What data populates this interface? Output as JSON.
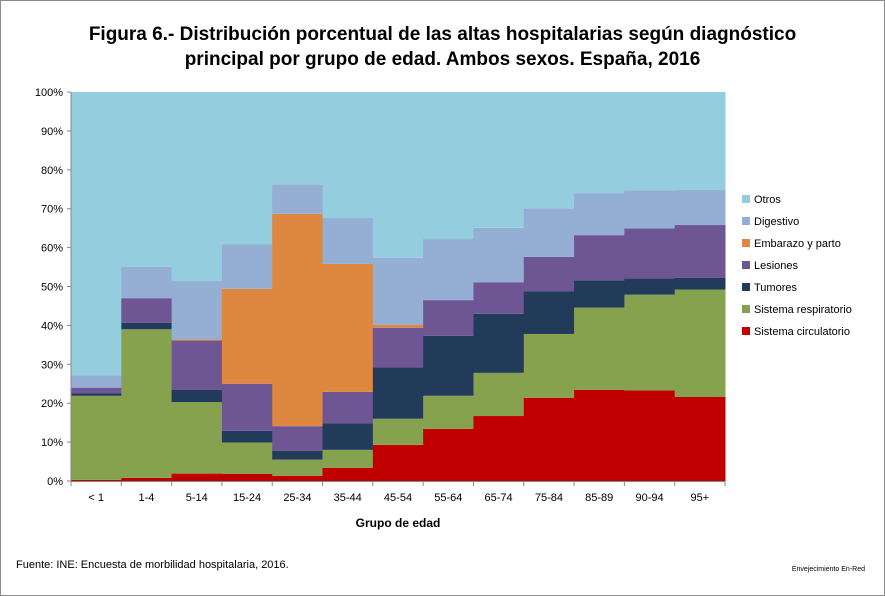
{
  "title_line1": "Figura 6.- Distribución porcentual de las altas hospitalarias según diagnóstico",
  "title_line2": "principal por grupo de edad. Ambos sexos. España, 2016",
  "source": "Fuente: INE: Encuesta de morbilidad hospitalaria, 2016.",
  "credit": "Envejecimiento En-Red",
  "chart_data": {
    "type": "bar",
    "stacked": true,
    "percent": true,
    "xlabel": "Grupo de edad",
    "ylabel": "",
    "ylim": [
      0,
      100
    ],
    "yticks": [
      "0%",
      "10%",
      "20%",
      "30%",
      "40%",
      "50%",
      "60%",
      "70%",
      "80%",
      "90%",
      "100%"
    ],
    "categories": [
      "< 1",
      "1-4",
      "5-14",
      "15-24",
      "25-34",
      "35-44",
      "45-54",
      "55-64",
      "65-74",
      "75-84",
      "85-89",
      "90-94",
      "95+"
    ],
    "legend_position": "right",
    "series": [
      {
        "name": "Sistema circulatorio",
        "color": "#C00000",
        "values": [
          0.3,
          0.8,
          1.9,
          1.8,
          1.3,
          3.4,
          9.3,
          13.4,
          16.7,
          21.4,
          23.4,
          23.3,
          21.6
        ]
      },
      {
        "name": "Sistema respiratorio",
        "color": "#86A24F",
        "values": [
          21.6,
          38.2,
          18.4,
          8.1,
          4.2,
          4.6,
          6.7,
          8.5,
          11.1,
          16.4,
          21.2,
          24.6,
          27.6
        ]
      },
      {
        "name": "Tumores",
        "color": "#223B5A",
        "values": [
          0.6,
          1.7,
          3.1,
          3.0,
          2.3,
          6.8,
          13.2,
          15.4,
          15.2,
          11.0,
          7.0,
          4.2,
          3.0
        ]
      },
      {
        "name": "Lesiones",
        "color": "#6E5593",
        "values": [
          1.5,
          6.3,
          12.7,
          12.1,
          6.3,
          8.1,
          10.2,
          9.2,
          8.1,
          8.8,
          11.6,
          12.8,
          13.6
        ]
      },
      {
        "name": "Embarazo y parto",
        "color": "#DE8740",
        "values": [
          0,
          0,
          0.3,
          24.4,
          54.6,
          32.9,
          0.7,
          0,
          0,
          0,
          0,
          0,
          0
        ]
      },
      {
        "name": "Digestivo",
        "color": "#95AED4",
        "values": [
          3.2,
          8.1,
          15.0,
          11.4,
          7.5,
          11.8,
          17.3,
          15.7,
          14.0,
          12.5,
          10.8,
          9.8,
          9.0
        ]
      },
      {
        "name": "Otros",
        "color": "#94CDDD",
        "values": [
          72.8,
          44.9,
          48.6,
          39.2,
          23.8,
          32.4,
          42.6,
          37.8,
          34.9,
          29.9,
          26.0,
          25.3,
          25.2
        ]
      }
    ]
  }
}
